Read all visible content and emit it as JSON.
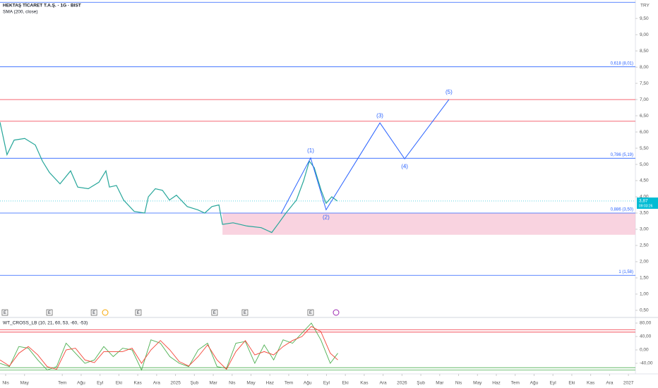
{
  "chart_data": [
    {
      "type": "line",
      "title": "HEKTAŞ TİCARET T.A.Ş. · 1G · BIST",
      "subtitle": "SMA (200, close)",
      "currency": "TRY",
      "xlim": [
        -0.3,
        33.37
      ],
      "xticks": [
        {
          "value": 0,
          "label": "Nis"
        },
        {
          "value": 1,
          "label": "May"
        },
        {
          "value": 3,
          "label": "Tem"
        },
        {
          "value": 4,
          "label": "Ağu"
        },
        {
          "value": 5,
          "label": "Eyl"
        },
        {
          "value": 6,
          "label": "Eki"
        },
        {
          "value": 7,
          "label": "Kas"
        },
        {
          "value": 8,
          "label": "Ara"
        },
        {
          "value": 9,
          "label": "2025"
        },
        {
          "value": 10,
          "label": "Şub"
        },
        {
          "value": 11,
          "label": "Mar"
        },
        {
          "value": 12,
          "label": "Nis"
        },
        {
          "value": 13,
          "label": "May"
        },
        {
          "value": 14,
          "label": "Haz"
        },
        {
          "value": 15,
          "label": "Tem"
        },
        {
          "value": 16,
          "label": "Ağu"
        },
        {
          "value": 17,
          "label": "Eyl"
        },
        {
          "value": 18,
          "label": "Eki"
        },
        {
          "value": 19,
          "label": "Kas"
        },
        {
          "value": 20,
          "label": "Ara"
        },
        {
          "value": 21,
          "label": "2026"
        },
        {
          "value": 22,
          "label": "Şub"
        },
        {
          "value": 23,
          "label": "Mar"
        },
        {
          "value": 24,
          "label": "Nis"
        },
        {
          "value": 25,
          "label": "May"
        },
        {
          "value": 26,
          "label": "Haz"
        },
        {
          "value": 27,
          "label": "Tem"
        },
        {
          "value": 28,
          "label": "Ağu"
        },
        {
          "value": 29,
          "label": "Eyl"
        },
        {
          "value": 30,
          "label": "Eki"
        },
        {
          "value": 31,
          "label": "Kas"
        },
        {
          "value": 32,
          "label": "Ara"
        },
        {
          "value": 33,
          "label": "2027"
        }
      ],
      "ylim": [
        0.28,
        10.07
      ],
      "yticks": [
        {
          "value": 0.5,
          "label": "0,50"
        },
        {
          "value": 1,
          "label": "1,00"
        },
        {
          "value": 1.5,
          "label": "1,50"
        },
        {
          "value": 2,
          "label": "2,00"
        },
        {
          "value": 2.5,
          "label": "2,50"
        },
        {
          "value": 3,
          "label": "3,00"
        },
        {
          "value": 3.5,
          "label": "3,50"
        },
        {
          "value": 4,
          "label": "4,00"
        },
        {
          "value": 4.5,
          "label": "4,50"
        },
        {
          "value": 5,
          "label": "5,00"
        },
        {
          "value": 5.5,
          "label": "5,50"
        },
        {
          "value": 6,
          "label": "6,00"
        },
        {
          "value": 6.5,
          "label": "6,50"
        },
        {
          "value": 7,
          "label": "7,00"
        },
        {
          "value": 7.5,
          "label": "7,50"
        },
        {
          "value": 8,
          "label": "8,00"
        },
        {
          "value": 8.5,
          "label": "8,50"
        },
        {
          "value": 9,
          "label": "9,00"
        },
        {
          "value": 9.5,
          "label": "9,50"
        }
      ],
      "x": [
        -0.3,
        0.07,
        0.45,
        1.01,
        1.57,
        1.95,
        2.32,
        2.88,
        3.44,
        3.82,
        4.38,
        4.94,
        5.31,
        5.5,
        5.87,
        6.25,
        6.81,
        7.37,
        7.56,
        7.93,
        8.31,
        8.68,
        9.05,
        9.62,
        10.18,
        10.55,
        10.93,
        11.3,
        11.49,
        12.05,
        12.79,
        13.54,
        14.1,
        14.48,
        14.85,
        15.41,
        15.79,
        16.09,
        16.35,
        16.72,
        16.98,
        17.28,
        17.58
      ],
      "series": [
        {
          "color": "#26a69a",
          "values": [
            6.3,
            5.3,
            5.75,
            5.8,
            5.6,
            5.1,
            4.75,
            4.4,
            4.8,
            4.3,
            4.25,
            4.45,
            4.8,
            4.3,
            4.35,
            3.9,
            3.55,
            3.5,
            4.0,
            4.25,
            4.2,
            3.9,
            4.05,
            3.7,
            3.6,
            3.5,
            3.7,
            3.75,
            3.15,
            3.2,
            3.1,
            3.05,
            2.9,
            3.2,
            3.5,
            3.9,
            4.5,
            5.1,
            4.9,
            4.2,
            3.8,
            4.0,
            3.87
          ]
        }
      ],
      "wave": {
        "color": "#2962ff",
        "x": [
          14.59,
          16.16,
          16.98,
          19.83,
          21.14,
          23.49
        ],
        "values": [
          3.48,
          5.2,
          3.6,
          6.28,
          5.17,
          7.0
        ],
        "labels": [
          null,
          "(1)",
          "(2)",
          "(3)",
          "(4)",
          "(5)"
        ]
      },
      "levels": [
        {
          "value": 10.0,
          "color": "#2962ff"
        },
        {
          "value": 8.01,
          "label": "0,618 (8,01)",
          "color": "#2962ff"
        },
        {
          "value": 7.0,
          "color": "#f23645"
        },
        {
          "value": 6.33,
          "color": "#f23645"
        },
        {
          "value": 5.19,
          "label": "0,786 (5,19)",
          "color": "#2962ff"
        },
        {
          "value": 3.5,
          "label": "0,886 (3,50)",
          "color": "#2962ff"
        },
        {
          "value": 1.58,
          "label": "1 (1,58)",
          "color": "#2962ff"
        }
      ],
      "zone": {
        "x_start": 11.49,
        "low": 2.83,
        "high": 3.5,
        "color": "#f8c8d8"
      },
      "last_price": {
        "value": 3.87,
        "label": "3,87",
        "time": "09:03:26",
        "color": "#00bcd4"
      },
      "events": [
        {
          "x": -0.04,
          "label": "E"
        },
        {
          "x": 2.32,
          "label": "E"
        },
        {
          "x": 4.68,
          "label": "E"
        },
        {
          "x": 7.03,
          "label": "E"
        },
        {
          "x": 11.07,
          "label": "E"
        },
        {
          "x": 12.68,
          "label": "E"
        },
        {
          "x": 16.16,
          "label": "E"
        }
      ]
    },
    {
      "type": "line",
      "title": "WT_CROSS_LB (10, 21, 60, 53, -60, -53)",
      "xlim": [
        -0.3,
        33.37
      ],
      "ylim": [
        -71.6,
        96.8
      ],
      "yticks": [
        {
          "value": -40,
          "label": "-40,00"
        },
        {
          "value": 0,
          "label": "0,00"
        },
        {
          "value": 40,
          "label": "40,00"
        },
        {
          "value": 80,
          "label": "80,00"
        }
      ],
      "x": [
        -0.3,
        0.2,
        0.7,
        1.2,
        1.7,
        2.2,
        2.7,
        3.2,
        3.7,
        4.2,
        4.7,
        5.2,
        5.7,
        6.2,
        6.7,
        7.2,
        7.7,
        8.2,
        8.7,
        9.2,
        9.7,
        10.2,
        10.7,
        11.2,
        11.7,
        12.2,
        12.7,
        13.2,
        13.7,
        14.2,
        14.7,
        15.2,
        15.7,
        16.2,
        16.7,
        17.2,
        17.6
      ],
      "series": [
        {
          "color": "#4caf50",
          "values": [
            -40,
            -50,
            10,
            5,
            -30,
            -60,
            -50,
            20,
            -10,
            -40,
            -30,
            10,
            -20,
            5,
            0,
            -60,
            30,
            20,
            -20,
            -40,
            -50,
            0,
            20,
            -50,
            -55,
            20,
            25,
            -40,
            15,
            -30,
            30,
            20,
            50,
            80,
            30,
            -40,
            -10
          ]
        },
        {
          "color": "#f44336",
          "values": [
            -30,
            -48,
            -10,
            10,
            -15,
            -50,
            -58,
            0,
            5,
            -30,
            -38,
            -5,
            -5,
            -5,
            5,
            -40,
            0,
            28,
            0,
            -35,
            -48,
            -20,
            15,
            -30,
            -58,
            -5,
            28,
            -15,
            -5,
            -15,
            10,
            28,
            40,
            70,
            55,
            -10,
            -30
          ]
        }
      ],
      "levels": [
        {
          "value": 60,
          "color": "#f23645"
        },
        {
          "value": 53,
          "color": "#f23645"
        },
        {
          "value": -53,
          "color": "#4caf50"
        },
        {
          "value": -60,
          "color": "#4caf50"
        }
      ]
    }
  ]
}
